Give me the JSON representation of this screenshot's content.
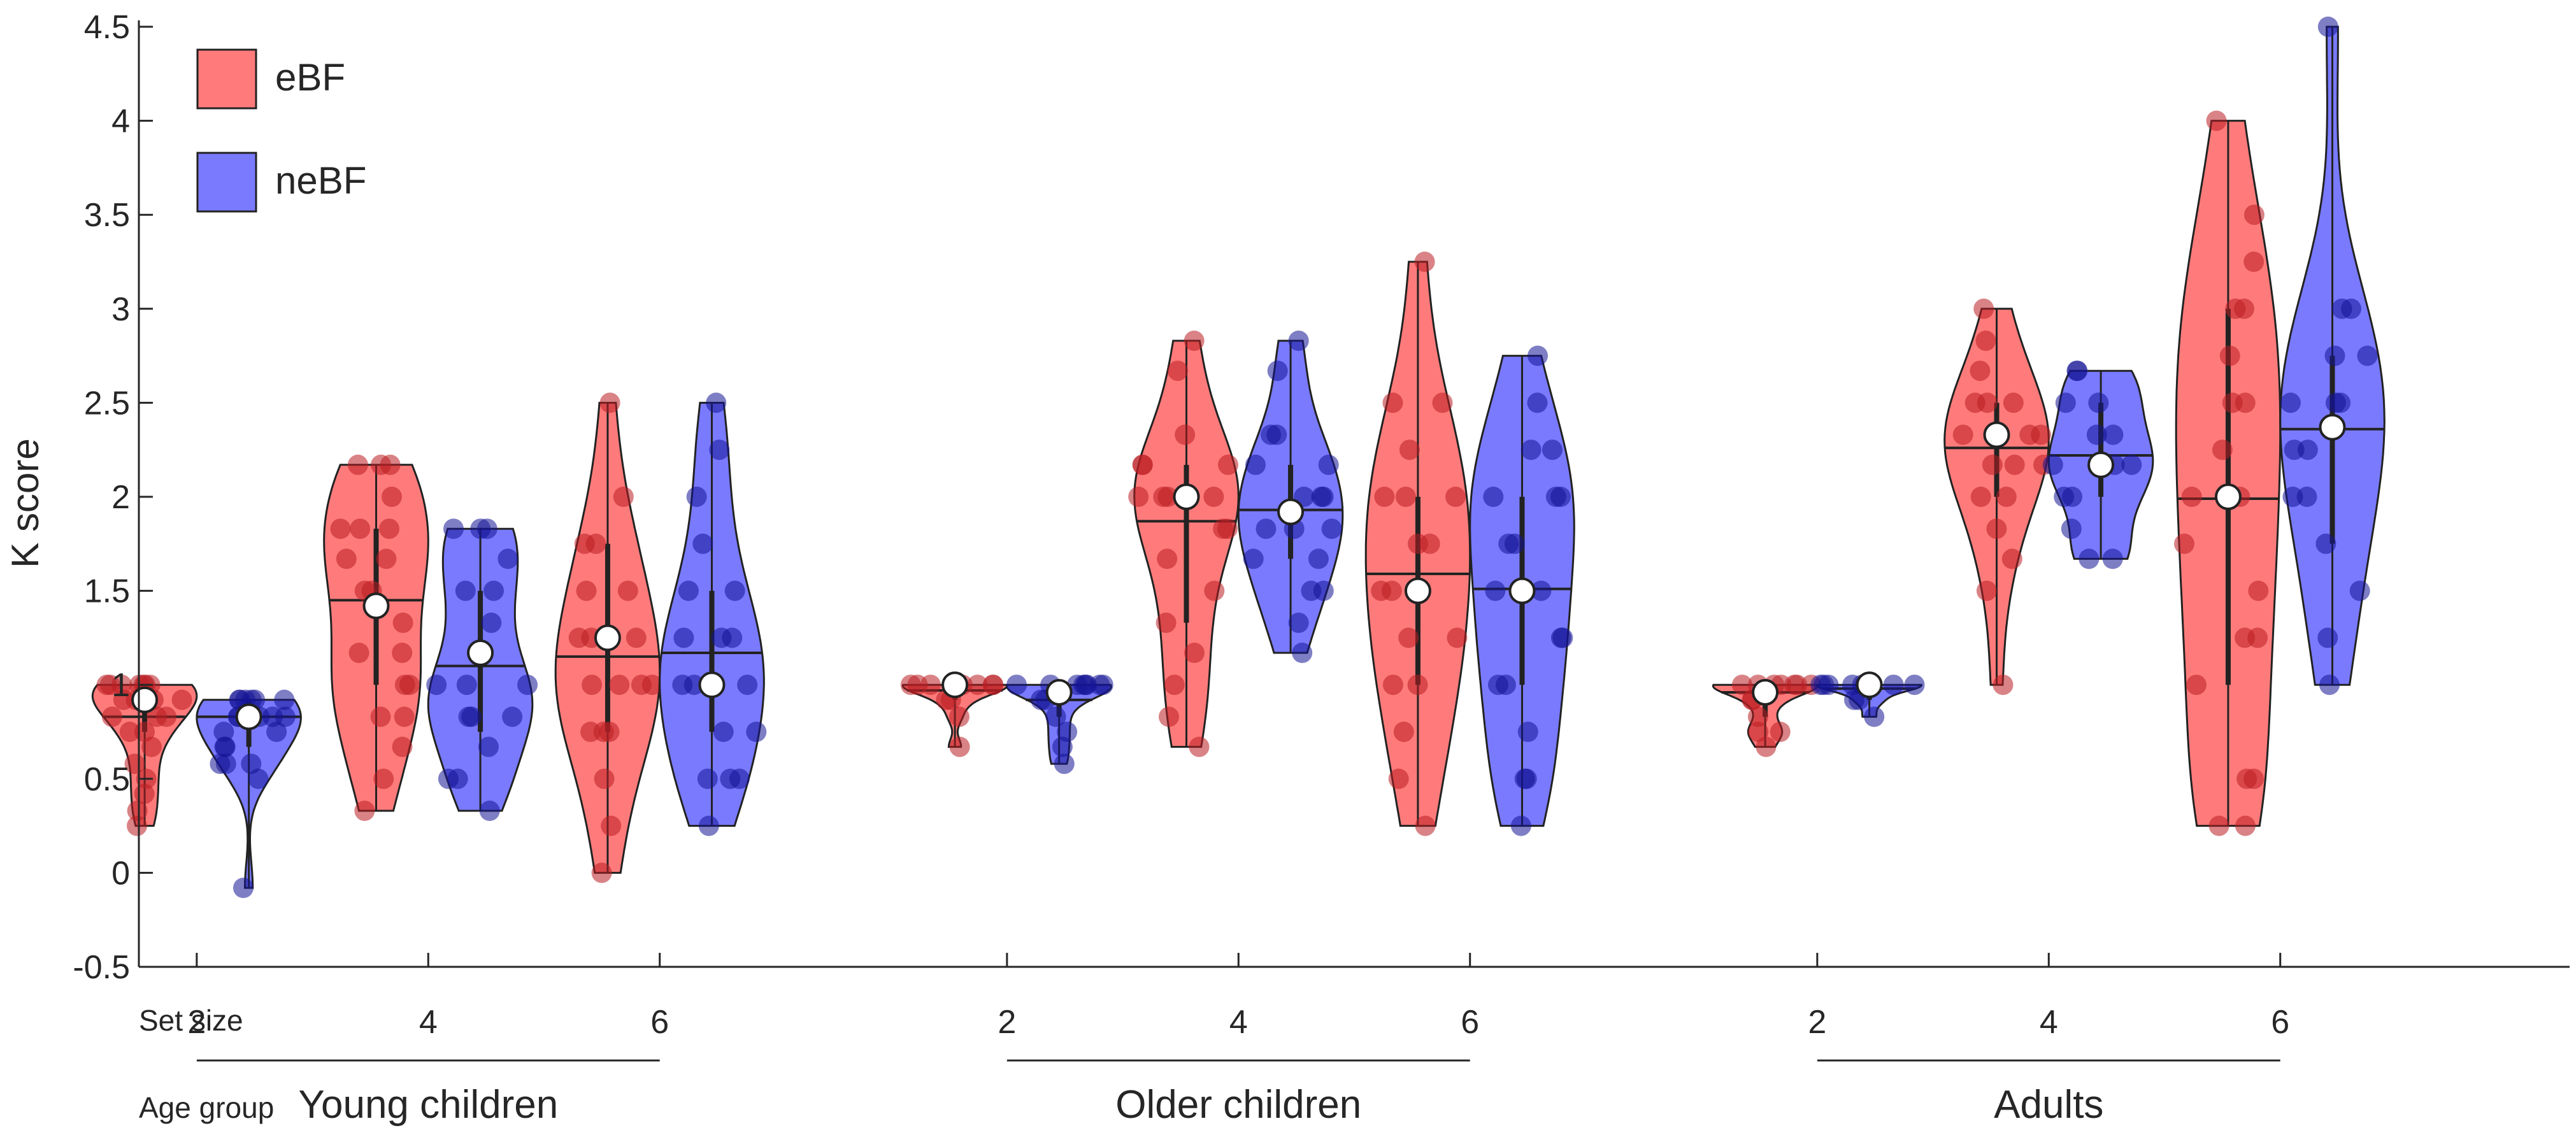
{
  "chart_data": {
    "type": "violin",
    "ylabel": "K score",
    "ylim": [
      -0.5,
      4.5
    ],
    "y_ticks": [
      "-0.5",
      "0",
      "0.5",
      "1",
      "1.5",
      "2",
      "2.5",
      "3",
      "3.5",
      "4",
      "4.5"
    ],
    "set_size_label": "Set size",
    "age_group_label": "Age group",
    "legend": [
      {
        "name": "eBF",
        "color": "#ff7b7b"
      },
      {
        "name": "neBF",
        "color": "#7a7aff"
      }
    ],
    "groups": [
      {
        "name": "Young children",
        "set_sizes": [
          {
            "label": "2",
            "eBF": {
              "min": 0.25,
              "max": 1.0,
              "median": 0.83,
              "mean": 0.92,
              "q1": 0.75,
              "q3": 1.0,
              "points": [
                1.0,
                1.0,
                1.0,
                1.0,
                1.0,
                1.0,
                1.0,
                0.92,
                0.92,
                0.92,
                0.92,
                0.83,
                0.83,
                0.83,
                0.75,
                0.75,
                0.67,
                0.58,
                0.5,
                0.42,
                0.33,
                0.25
              ]
            },
            "neBF": {
              "min": -0.08,
              "max": 0.92,
              "median": 0.83,
              "mean": 0.83,
              "q1": 0.67,
              "q3": 0.92,
              "points": [
                0.92,
                0.92,
                0.92,
                0.92,
                0.92,
                0.92,
                0.83,
                0.83,
                0.83,
                0.83,
                0.83,
                0.75,
                0.75,
                0.67,
                0.67,
                0.58,
                0.58,
                0.58,
                0.5,
                -0.08
              ]
            }
          },
          {
            "label": "4",
            "eBF": {
              "min": 0.33,
              "max": 2.17,
              "median": 1.45,
              "mean": 1.42,
              "q1": 1.0,
              "q3": 1.83,
              "points": [
                2.17,
                2.17,
                2.17,
                2.0,
                1.83,
                1.83,
                1.83,
                1.67,
                1.67,
                1.5,
                1.5,
                1.33,
                1.17,
                1.17,
                1.0,
                1.0,
                0.83,
                0.83,
                0.67,
                0.5,
                0.33
              ]
            },
            "neBF": {
              "min": 0.33,
              "max": 1.83,
              "median": 1.1,
              "mean": 1.17,
              "q1": 0.75,
              "q3": 1.5,
              "points": [
                1.83,
                1.83,
                1.83,
                1.67,
                1.5,
                1.5,
                1.33,
                1.17,
                1.0,
                1.0,
                1.0,
                0.83,
                0.83,
                0.83,
                0.67,
                0.5,
                0.5,
                0.33
              ]
            }
          },
          {
            "label": "6",
            "eBF": {
              "min": 0.0,
              "max": 2.5,
              "median": 1.15,
              "mean": 1.25,
              "q1": 0.75,
              "q3": 1.75,
              "points": [
                2.5,
                2.0,
                1.75,
                1.75,
                1.5,
                1.5,
                1.25,
                1.25,
                1.25,
                1.0,
                1.0,
                1.0,
                1.0,
                0.75,
                0.75,
                0.75,
                0.5,
                0.25,
                0.0
              ]
            },
            "neBF": {
              "min": 0.25,
              "max": 2.5,
              "median": 1.17,
              "mean": 1.0,
              "q1": 0.75,
              "q3": 1.5,
              "points": [
                2.5,
                2.25,
                2.0,
                1.75,
                1.5,
                1.5,
                1.25,
                1.25,
                1.25,
                1.0,
                1.0,
                1.0,
                1.0,
                0.75,
                0.75,
                0.5,
                0.5,
                0.5,
                0.25
              ]
            }
          }
        ]
      },
      {
        "name": "Older children",
        "set_sizes": [
          {
            "label": "2",
            "eBF": {
              "min": 0.67,
              "max": 1.0,
              "median": 0.97,
              "mean": 1.0,
              "q1": 0.92,
              "q3": 1.0,
              "points": [
                1.0,
                1.0,
                1.0,
                1.0,
                1.0,
                1.0,
                1.0,
                1.0,
                0.92,
                0.92,
                0.83,
                0.67
              ]
            },
            "neBF": {
              "min": 0.58,
              "max": 1.0,
              "median": 0.92,
              "mean": 0.96,
              "q1": 0.83,
              "q3": 1.0,
              "points": [
                1.0,
                1.0,
                1.0,
                1.0,
                1.0,
                1.0,
                1.0,
                1.0,
                0.92,
                0.92,
                0.83,
                0.75,
                0.67,
                0.58
              ]
            }
          },
          {
            "label": "4",
            "eBF": {
              "min": 0.67,
              "max": 2.83,
              "median": 1.87,
              "mean": 2.0,
              "q1": 1.33,
              "q3": 2.17,
              "points": [
                2.83,
                2.67,
                2.33,
                2.17,
                2.17,
                2.17,
                2.0,
                2.0,
                2.0,
                2.0,
                1.83,
                1.83,
                1.67,
                1.5,
                1.33,
                1.17,
                1.0,
                0.83,
                0.67
              ]
            },
            "neBF": {
              "min": 1.17,
              "max": 2.83,
              "median": 1.93,
              "mean": 1.92,
              "q1": 1.67,
              "q3": 2.17,
              "points": [
                2.83,
                2.67,
                2.33,
                2.33,
                2.17,
                2.17,
                2.0,
                2.0,
                2.0,
                1.83,
                1.83,
                1.83,
                1.67,
                1.67,
                1.5,
                1.5,
                1.33,
                1.17
              ]
            }
          },
          {
            "label": "6",
            "eBF": {
              "min": 0.25,
              "max": 3.25,
              "median": 1.59,
              "mean": 1.5,
              "q1": 1.0,
              "q3": 2.0,
              "points": [
                3.25,
                2.5,
                2.5,
                2.25,
                2.0,
                2.0,
                2.0,
                1.75,
                1.75,
                1.5,
                1.5,
                1.25,
                1.25,
                1.0,
                1.0,
                0.75,
                0.5,
                0.25
              ]
            },
            "neBF": {
              "min": 0.25,
              "max": 2.75,
              "median": 1.51,
              "mean": 1.5,
              "q1": 1.0,
              "q3": 2.0,
              "points": [
                2.75,
                2.5,
                2.25,
                2.25,
                2.0,
                2.0,
                2.0,
                1.75,
                1.75,
                1.5,
                1.5,
                1.25,
                1.25,
                1.0,
                1.0,
                0.75,
                0.5,
                0.5,
                0.25
              ]
            }
          }
        ]
      },
      {
        "name": "Adults",
        "set_sizes": [
          {
            "label": "2",
            "eBF": {
              "min": 0.67,
              "max": 1.0,
              "median": 0.96,
              "mean": 0.96,
              "q1": 0.83,
              "q3": 1.0,
              "points": [
                1.0,
                1.0,
                1.0,
                1.0,
                1.0,
                1.0,
                1.0,
                0.92,
                0.92,
                0.83,
                0.75,
                0.75,
                0.67
              ]
            },
            "neBF": {
              "min": 0.83,
              "max": 1.0,
              "median": 0.98,
              "mean": 1.0,
              "q1": 0.92,
              "q3": 1.0,
              "points": [
                1.0,
                1.0,
                1.0,
                1.0,
                1.0,
                1.0,
                1.0,
                1.0,
                0.92,
                0.92,
                0.83
              ]
            }
          },
          {
            "label": "4",
            "eBF": {
              "min": 1.0,
              "max": 3.0,
              "median": 2.26,
              "mean": 2.33,
              "q1": 2.0,
              "q3": 2.5,
              "points": [
                3.0,
                2.83,
                2.67,
                2.5,
                2.5,
                2.5,
                2.33,
                2.33,
                2.33,
                2.33,
                2.17,
                2.17,
                2.17,
                2.0,
                2.0,
                1.83,
                1.67,
                1.5,
                1.0
              ]
            },
            "neBF": {
              "min": 1.67,
              "max": 2.67,
              "median": 2.22,
              "mean": 2.17,
              "q1": 2.0,
              "q3": 2.5,
              "points": [
                2.67,
                2.67,
                2.5,
                2.5,
                2.33,
                2.33,
                2.17,
                2.17,
                2.17,
                2.0,
                2.0,
                1.83,
                1.67,
                1.67
              ]
            }
          },
          {
            "label": "6",
            "eBF": {
              "min": 0.25,
              "max": 4.0,
              "median": 1.99,
              "mean": 2.0,
              "q1": 1.0,
              "q3": 3.0,
              "points": [
                4.0,
                3.5,
                3.25,
                3.0,
                3.0,
                2.75,
                2.5,
                2.5,
                2.25,
                2.0,
                2.0,
                1.75,
                1.5,
                1.25,
                1.25,
                1.0,
                0.5,
                0.5,
                0.25,
                0.25
              ]
            },
            "neBF": {
              "min": 1.0,
              "max": 4.5,
              "median": 2.36,
              "mean": 2.37,
              "q1": 1.75,
              "q3": 2.75,
              "points": [
                4.5,
                3.0,
                3.0,
                2.75,
                2.75,
                2.5,
                2.5,
                2.5,
                2.25,
                2.25,
                2.0,
                2.0,
                1.75,
                1.5,
                1.25,
                1.0
              ]
            }
          }
        ]
      }
    ]
  }
}
